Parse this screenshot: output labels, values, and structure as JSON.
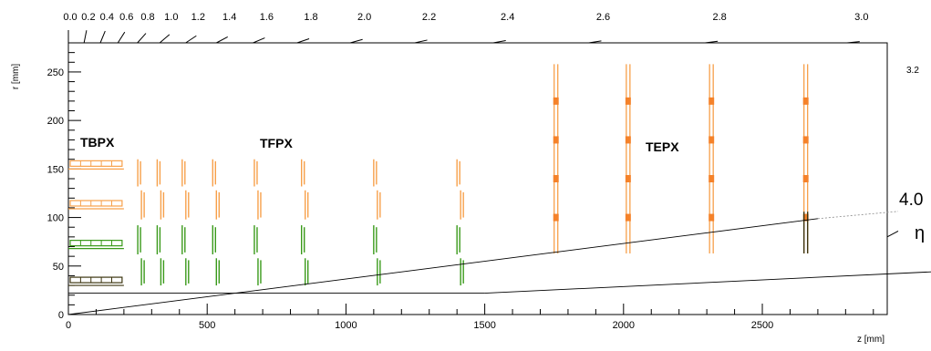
{
  "axes": {
    "x_label": "z [mm]",
    "y_label": "r [mm]",
    "x_range": [
      0,
      2950
    ],
    "y_range": [
      0,
      280
    ],
    "x_ticks": [
      0,
      500,
      1000,
      1500,
      2000,
      2500
    ],
    "y_ticks": [
      0,
      50,
      100,
      150,
      200,
      250
    ]
  },
  "eta_scale": {
    "top_labels": [
      "0.0",
      "0.2",
      "0.4",
      "0.6",
      "0.8",
      "1.0",
      "1.2",
      "1.4",
      "1.6",
      "1.8",
      "2.0",
      "2.2",
      "2.4",
      "2.6",
      "2.8",
      "3.0"
    ],
    "right_label": "3.2",
    "eta_lines_label": "4.0",
    "eta_symbol": "η"
  },
  "labels": {
    "tbpx": "TBPX",
    "tfpx": "TFPX",
    "tepx": "TEPX"
  },
  "colors": {
    "orange": "#f7a04a",
    "orange_fill": "#f5822a",
    "green": "#3a9a1a",
    "dark": "#3d3510"
  },
  "detector": {
    "barrel_layers_r": [
      30,
      68,
      109,
      150
    ],
    "barrel_z_max": 200,
    "tfpx_disks_z": [
      250,
      320,
      410,
      520,
      670,
      840,
      1100,
      1400
    ],
    "tepx_disks_z": [
      1750,
      2010,
      2310,
      2650
    ]
  }
}
